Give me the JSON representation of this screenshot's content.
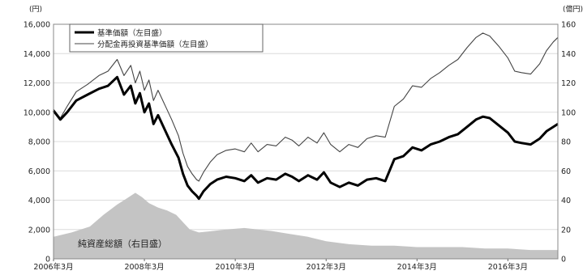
{
  "chart_data": {
    "type": "line",
    "left_unit": "(円)",
    "right_unit": "(億円)",
    "x_labels": [
      "2006年3月",
      "2008年3月",
      "2010年3月",
      "2012年3月",
      "2014年3月",
      "2016年3月"
    ],
    "x_range": [
      2006.0,
      2017.1
    ],
    "y_left": {
      "min": 0,
      "max": 16000,
      "ticks": [
        "0",
        "2,000",
        "4,000",
        "6,000",
        "8,000",
        "10,000",
        "12,000",
        "14,000",
        "16,000"
      ]
    },
    "y_right": {
      "min": 0,
      "max": 160,
      "ticks": [
        "0",
        "20",
        "40",
        "60",
        "80",
        "100",
        "120",
        "140",
        "160"
      ]
    },
    "grid": true,
    "legend_position": "top-left",
    "series": [
      {
        "name": "基準価額（左目盛）",
        "axis": "left",
        "style": "line-thick",
        "color": "#000000",
        "x": [
          2006.0,
          2006.15,
          2006.3,
          2006.5,
          2006.75,
          2007.0,
          2007.2,
          2007.4,
          2007.55,
          2007.7,
          2007.8,
          2007.9,
          2008.0,
          2008.1,
          2008.2,
          2008.3,
          2008.45,
          2008.6,
          2008.75,
          2008.85,
          2008.95,
          2009.05,
          2009.15,
          2009.2,
          2009.3,
          2009.45,
          2009.6,
          2009.8,
          2010.0,
          2010.2,
          2010.35,
          2010.5,
          2010.7,
          2010.9,
          2011.1,
          2011.25,
          2011.4,
          2011.6,
          2011.8,
          2011.95,
          2012.1,
          2012.3,
          2012.5,
          2012.7,
          2012.9,
          2013.1,
          2013.3,
          2013.5,
          2013.7,
          2013.9,
          2014.1,
          2014.3,
          2014.5,
          2014.7,
          2014.9,
          2015.1,
          2015.3,
          2015.45,
          2015.6,
          2015.8,
          2016.0,
          2016.15,
          2016.3,
          2016.5,
          2016.7,
          2016.85,
          2017.0,
          2017.1
        ],
        "values": [
          10100,
          9500,
          10000,
          10800,
          11200,
          11600,
          11800,
          12400,
          11200,
          11800,
          10600,
          11300,
          10000,
          10600,
          9200,
          9800,
          8800,
          7800,
          6900,
          5800,
          5000,
          4600,
          4300,
          4100,
          4600,
          5100,
          5400,
          5600,
          5500,
          5300,
          5700,
          5200,
          5500,
          5400,
          5800,
          5600,
          5300,
          5700,
          5400,
          5900,
          5200,
          4900,
          5200,
          5000,
          5400,
          5500,
          5300,
          6800,
          7000,
          7600,
          7400,
          7800,
          8000,
          8300,
          8500,
          9000,
          9500,
          9700,
          9600,
          9100,
          8600,
          8000,
          7900,
          7800,
          8200,
          8700,
          9000,
          9200
        ]
      },
      {
        "name": "分配金再投資基準価額（左目盛）",
        "axis": "left",
        "style": "line-thin",
        "color": "#444444",
        "x": [
          2006.0,
          2006.15,
          2006.3,
          2006.5,
          2006.75,
          2007.0,
          2007.2,
          2007.4,
          2007.55,
          2007.7,
          2007.8,
          2007.9,
          2008.0,
          2008.1,
          2008.2,
          2008.3,
          2008.45,
          2008.6,
          2008.75,
          2008.85,
          2008.95,
          2009.05,
          2009.15,
          2009.2,
          2009.3,
          2009.45,
          2009.6,
          2009.8,
          2010.0,
          2010.2,
          2010.35,
          2010.5,
          2010.7,
          2010.9,
          2011.1,
          2011.25,
          2011.4,
          2011.6,
          2011.8,
          2011.95,
          2012.1,
          2012.3,
          2012.5,
          2012.7,
          2012.9,
          2013.1,
          2013.3,
          2013.5,
          2013.7,
          2013.9,
          2014.1,
          2014.3,
          2014.5,
          2014.7,
          2014.9,
          2015.1,
          2015.3,
          2015.45,
          2015.6,
          2015.8,
          2016.0,
          2016.15,
          2016.3,
          2016.5,
          2016.7,
          2016.85,
          2017.0,
          2017.1
        ],
        "values": [
          10200,
          9600,
          10400,
          11400,
          11900,
          12500,
          12800,
          13600,
          12500,
          13200,
          12000,
          12800,
          11500,
          12200,
          10800,
          11500,
          10500,
          9500,
          8400,
          7200,
          6300,
          5800,
          5400,
          5300,
          5900,
          6600,
          7100,
          7400,
          7500,
          7300,
          7900,
          7300,
          7800,
          7700,
          8300,
          8100,
          7700,
          8300,
          7900,
          8600,
          7800,
          7300,
          7800,
          7600,
          8200,
          8400,
          8300,
          10400,
          10900,
          11800,
          11700,
          12300,
          12700,
          13200,
          13600,
          14400,
          15100,
          15400,
          15200,
          14500,
          13700,
          12800,
          12700,
          12600,
          13300,
          14200,
          14800,
          15100
        ]
      },
      {
        "name": "純資産総額（右目盛）",
        "axis": "right",
        "style": "area",
        "color": "#c4c4c4",
        "x": [
          2006.0,
          2006.4,
          2006.8,
          2007.1,
          2007.4,
          2007.6,
          2007.8,
          2007.95,
          2008.1,
          2008.3,
          2008.5,
          2008.7,
          2008.85,
          2009.0,
          2009.2,
          2009.5,
          2009.8,
          2010.2,
          2010.5,
          2010.8,
          2011.2,
          2011.6,
          2012.0,
          2012.5,
          2013.0,
          2013.5,
          2014.0,
          2014.5,
          2015.0,
          2015.5,
          2016.0,
          2016.5,
          2017.0,
          2017.1
        ],
        "values": [
          15,
          18,
          22,
          30,
          37,
          41,
          45,
          42,
          38,
          35,
          33,
          30,
          25,
          20,
          18,
          19,
          20,
          21,
          20,
          19,
          17,
          15,
          12,
          10,
          9,
          9,
          8,
          8,
          8,
          7,
          7,
          6,
          6,
          6
        ]
      }
    ]
  }
}
